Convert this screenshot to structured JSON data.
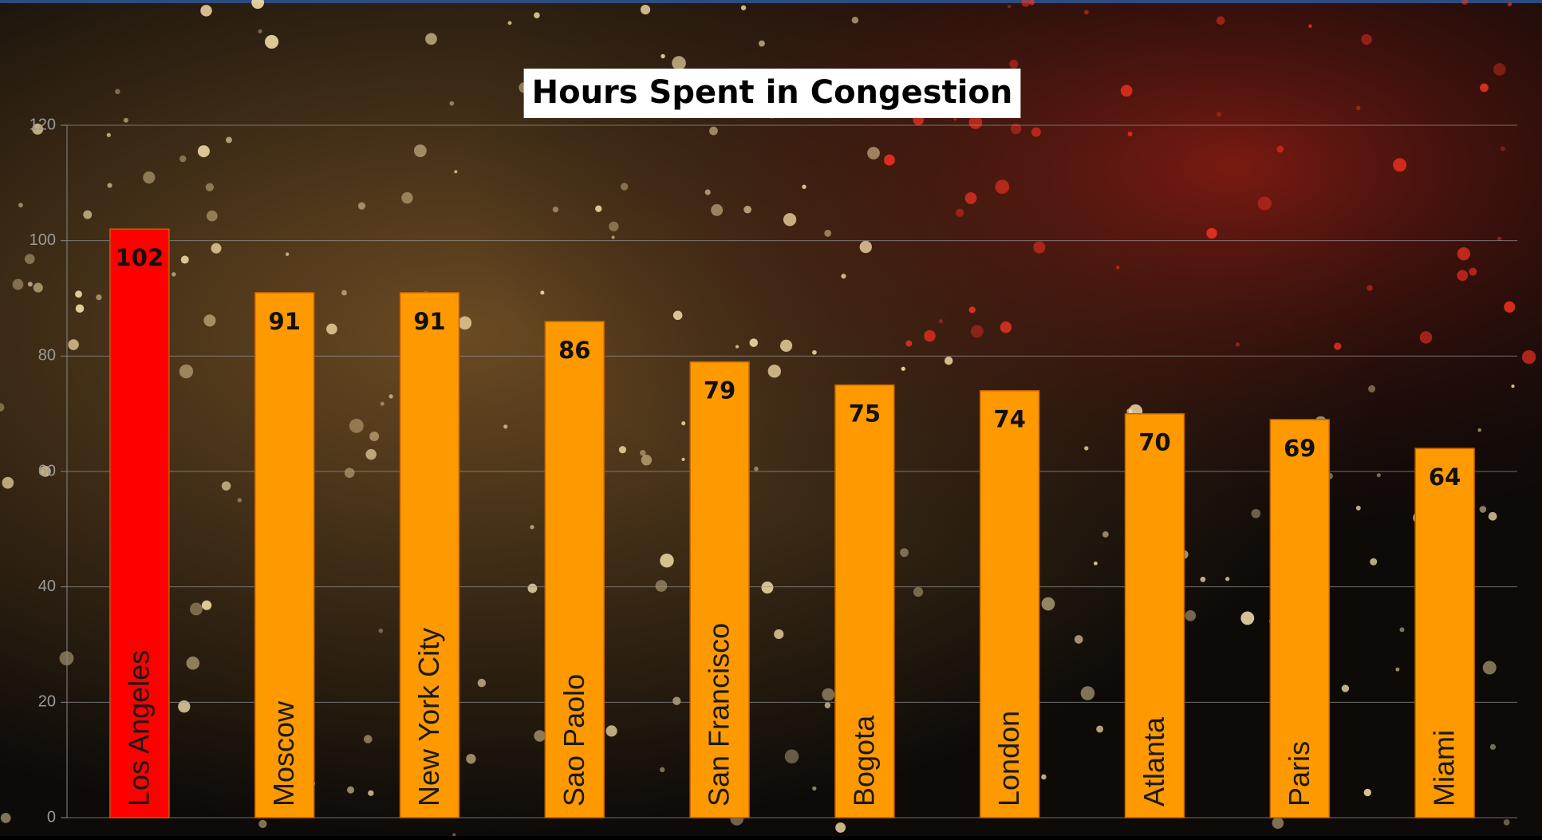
{
  "chart_data": {
    "type": "bar",
    "title": "Hours Spent in Congestion",
    "categories": [
      "Los Angeles",
      "Moscow",
      "New York City",
      "Sao Paolo",
      "San Francisco",
      "Bogota",
      "London",
      "Atlanta",
      "Paris",
      "Miami"
    ],
    "values": [
      102,
      91,
      91,
      86,
      79,
      75,
      74,
      70,
      69,
      64
    ],
    "colors": [
      "#ff0000",
      "#ff9900",
      "#ff9900",
      "#ff9900",
      "#ff9900",
      "#ff9900",
      "#ff9900",
      "#ff9900",
      "#ff9900",
      "#ff9900"
    ],
    "ylim": [
      0,
      120
    ],
    "yticks": [
      0,
      20,
      40,
      60,
      80,
      100,
      120
    ],
    "grid": true
  }
}
